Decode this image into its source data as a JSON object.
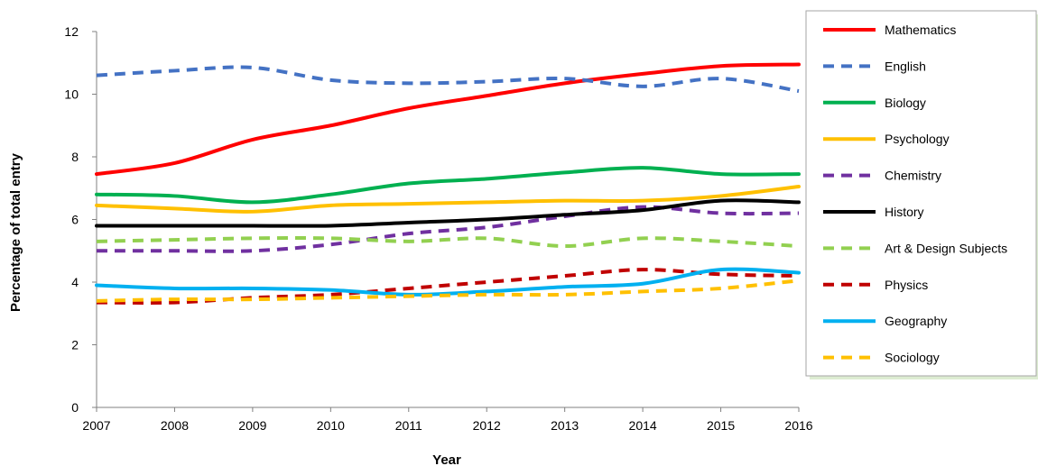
{
  "chart_data": {
    "type": "line",
    "title": "",
    "xlabel": "Year",
    "ylabel": "Percentage of total entry",
    "x": [
      2007,
      2008,
      2009,
      2010,
      2011,
      2012,
      2013,
      2014,
      2015,
      2016
    ],
    "xlim": [
      2007,
      2016
    ],
    "ylim": [
      0,
      12
    ],
    "yticks": [
      0,
      2,
      4,
      6,
      8,
      10,
      12
    ],
    "grid": false,
    "smooth": true,
    "legend_position": "right",
    "series": [
      {
        "name": "Mathematics",
        "color": "#ff0000",
        "dash": false,
        "values": [
          7.45,
          7.8,
          8.55,
          9.0,
          9.55,
          9.95,
          10.35,
          10.65,
          10.9,
          10.95
        ]
      },
      {
        "name": "English",
        "color": "#4472c4",
        "dash": true,
        "values": [
          10.6,
          10.75,
          10.85,
          10.45,
          10.35,
          10.4,
          10.5,
          10.25,
          10.5,
          10.1
        ]
      },
      {
        "name": "Biology",
        "color": "#00b050",
        "dash": false,
        "values": [
          6.8,
          6.75,
          6.55,
          6.8,
          7.15,
          7.3,
          7.5,
          7.65,
          7.45,
          7.45
        ]
      },
      {
        "name": "Psychology",
        "color": "#ffc000",
        "dash": false,
        "values": [
          6.45,
          6.35,
          6.25,
          6.45,
          6.5,
          6.55,
          6.6,
          6.6,
          6.75,
          7.05
        ]
      },
      {
        "name": "Chemistry",
        "color": "#7030a0",
        "dash": true,
        "values": [
          5.0,
          5.0,
          5.0,
          5.2,
          5.55,
          5.75,
          6.1,
          6.4,
          6.2,
          6.2
        ]
      },
      {
        "name": "History",
        "color": "#000000",
        "dash": false,
        "values": [
          5.8,
          5.8,
          5.8,
          5.8,
          5.9,
          6.0,
          6.15,
          6.3,
          6.6,
          6.55
        ]
      },
      {
        "name": "Art & Design Subjects",
        "color": "#92d050",
        "dash": true,
        "values": [
          5.3,
          5.35,
          5.4,
          5.4,
          5.3,
          5.4,
          5.15,
          5.4,
          5.3,
          5.15
        ]
      },
      {
        "name": "Physics",
        "color": "#c00000",
        "dash": true,
        "values": [
          3.35,
          3.35,
          3.5,
          3.6,
          3.8,
          4.0,
          4.2,
          4.4,
          4.25,
          4.2
        ]
      },
      {
        "name": "Geography",
        "color": "#00b0f0",
        "dash": false,
        "values": [
          3.9,
          3.8,
          3.8,
          3.75,
          3.6,
          3.7,
          3.85,
          3.95,
          4.4,
          4.3
        ]
      },
      {
        "name": "Sociology",
        "color": "#ffc000",
        "dash": true,
        "values": [
          3.4,
          3.45,
          3.45,
          3.5,
          3.55,
          3.6,
          3.6,
          3.7,
          3.8,
          4.05
        ]
      }
    ]
  }
}
